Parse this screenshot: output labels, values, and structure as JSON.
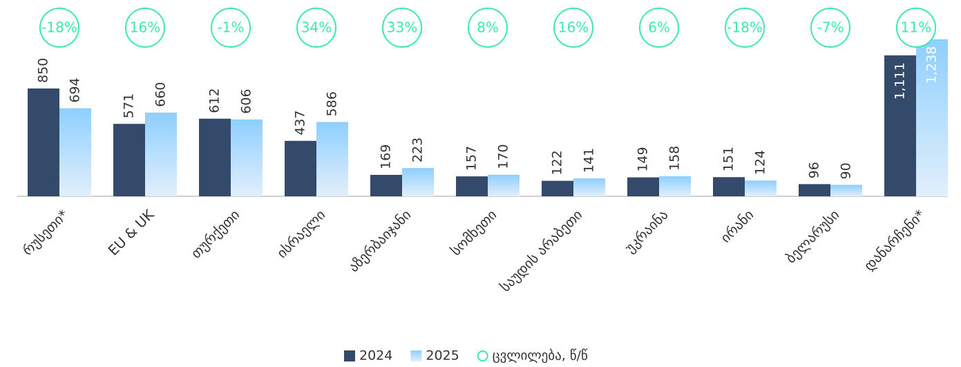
{
  "chart_data": {
    "type": "bar",
    "categories": [
      "რუსეთი*",
      "EU & UK",
      "თურქეთი",
      "ისრაელი",
      "აზერბაიჯანი",
      "სომხეთი",
      "საუდის არაბეთი",
      "უკრაინა",
      "ირანი",
      "ბელარუსი",
      "დანარჩენი*"
    ],
    "series": [
      {
        "name": "2024",
        "color": "#344a6b",
        "values": [
          850,
          571,
          612,
          437,
          169,
          157,
          122,
          149,
          151,
          96,
          1111
        ],
        "value_labels": [
          "850",
          "571",
          "612",
          "437",
          "169",
          "157",
          "122",
          "149",
          "151",
          "96",
          "1,111"
        ]
      },
      {
        "name": "2025",
        "color": "#8ecfff",
        "values": [
          694,
          660,
          606,
          586,
          223,
          170,
          141,
          158,
          124,
          90,
          1238
        ],
        "value_labels": [
          "694",
          "660",
          "606",
          "586",
          "223",
          "170",
          "141",
          "158",
          "124",
          "90",
          "1,238"
        ]
      }
    ],
    "change_name": "ცვლილება, წ/წ",
    "change_color": "#3de8b0",
    "change_labels": [
      "-18%",
      "16%",
      "-1%",
      "34%",
      "33%",
      "8%",
      "16%",
      "6%",
      "-18%",
      "-7%",
      "11%"
    ]
  }
}
